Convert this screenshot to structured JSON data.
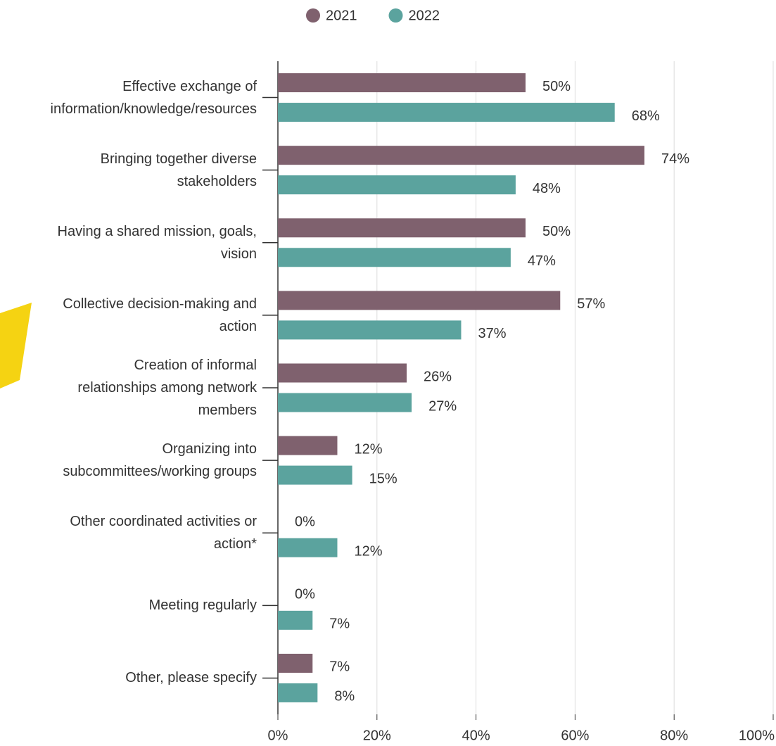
{
  "chart_data": {
    "type": "bar",
    "orientation": "horizontal",
    "categories": [
      "Effective exchange of\ninformation/knowledge/resources",
      "Bringing together diverse\nstakeholders",
      "Having a shared mission, goals,\nvision",
      "Collective decision-making and\naction",
      "Creation of informal\nrelationships among network\nmembers",
      "Organizing into\nsubcommittees/working groups",
      "Other coordinated activities or\naction*",
      "Meeting regularly",
      "Other, please specify"
    ],
    "series": [
      {
        "name": "2021",
        "color": "#7f616e",
        "values": [
          50,
          74,
          50,
          57,
          26,
          12,
          0,
          0,
          7
        ],
        "value_labels": [
          "50%",
          "74%",
          "50%",
          "57%",
          "26%",
          "12%",
          "0%",
          "0%",
          "7%"
        ]
      },
      {
        "name": "2022",
        "color": "#5ba39e",
        "values": [
          68,
          48,
          47,
          37,
          27,
          15,
          12,
          7,
          8
        ],
        "value_labels": [
          "68%",
          "48%",
          "47%",
          "37%",
          "27%",
          "15%",
          "12%",
          "7%",
          "8%"
        ]
      }
    ],
    "xlim": [
      0,
      100
    ],
    "xticks": [
      {
        "value": 0,
        "label": "0%"
      },
      {
        "value": 20,
        "label": "20%"
      },
      {
        "value": 40,
        "label": "40%"
      },
      {
        "value": 60,
        "label": "60%"
      },
      {
        "value": 80,
        "label": "80%"
      },
      {
        "value": 100,
        "label": "100%"
      }
    ],
    "grid": true,
    "legend": "top"
  }
}
